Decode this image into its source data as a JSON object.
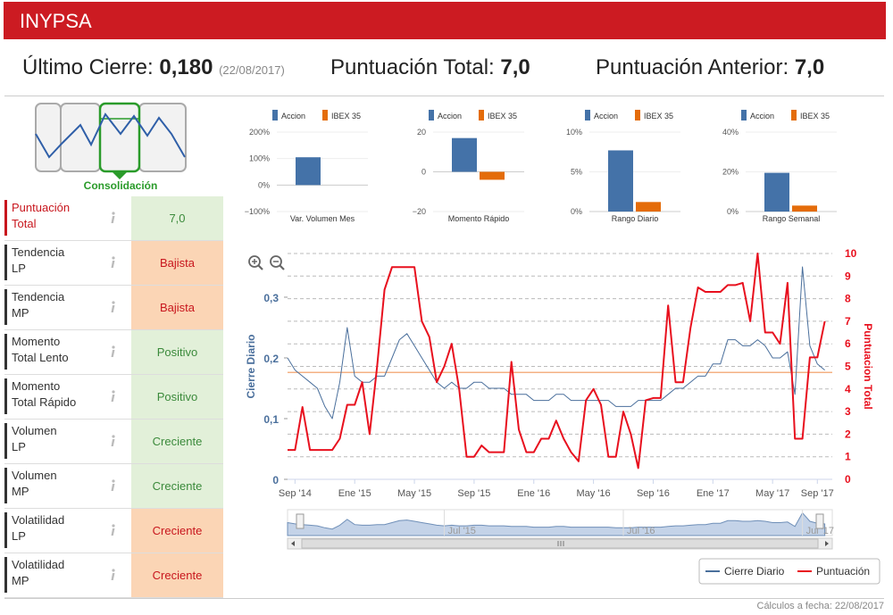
{
  "header": {
    "title": "INYPSA"
  },
  "summary": [
    {
      "label": "Último Cierre:",
      "value": "0,180",
      "date": "(22/08/2017)"
    },
    {
      "label": "Puntuación Total:",
      "value": "7,0"
    },
    {
      "label": "Puntuación Anterior:",
      "value": "7,0"
    }
  ],
  "pattern": {
    "label": "Consolidación"
  },
  "indicators": [
    {
      "label": "Puntuación\nTotal",
      "value": "7,0",
      "label_color": "#c8161d",
      "color": "#e2f0d9",
      "value_color": "#3b8a3b"
    },
    {
      "label": "Tendencia\nLP",
      "value": "Bajista",
      "label_color": "#333333",
      "color": "#fbd5b5",
      "value_color": "#c8161d"
    },
    {
      "label": "Tendencia\nMP",
      "value": "Bajista",
      "label_color": "#333333",
      "color": "#fbd5b5",
      "value_color": "#c8161d"
    },
    {
      "label": "Momento\nTotal Lento",
      "value": "Positivo",
      "label_color": "#333333",
      "color": "#e2f0d9",
      "value_color": "#3b8a3b"
    },
    {
      "label": "Momento\nTotal Rápido",
      "value": "Positivo",
      "label_color": "#333333",
      "color": "#e2f0d9",
      "value_color": "#3b8a3b"
    },
    {
      "label": "Volumen\nLP",
      "value": "Creciente",
      "label_color": "#333333",
      "color": "#e2f0d9",
      "value_color": "#3b8a3b"
    },
    {
      "label": "Volumen\nMP",
      "value": "Creciente",
      "label_color": "#333333",
      "color": "#e2f0d9",
      "value_color": "#3b8a3b"
    },
    {
      "label": "Volatilidad\nLP",
      "value": "Creciente",
      "label_color": "#333333",
      "color": "#fbd5b5",
      "value_color": "#c8161d"
    },
    {
      "label": "Volatilidad\nMP",
      "value": "Creciente",
      "label_color": "#333333",
      "color": "#fbd5b5",
      "value_color": "#c8161d"
    }
  ],
  "chart_data": [
    {
      "type": "line",
      "x": [
        -0.5,
        0,
        0.5,
        1,
        1.5,
        2,
        2.5,
        3,
        3.5,
        4,
        4.5,
        5,
        5.5,
        6,
        6.5,
        7,
        7.5,
        8,
        8.5,
        9,
        9.5,
        10,
        10.5,
        11,
        11.5,
        12,
        12.5,
        13,
        13.5,
        14,
        14.5,
        15,
        15.5,
        16,
        16.5,
        17,
        17.5,
        18,
        18.5,
        19,
        19.5,
        20,
        20.5,
        21,
        21.5,
        22,
        22.5,
        23,
        23.5,
        24,
        24.5,
        25,
        25.5,
        26,
        26.5,
        27,
        27.5,
        28,
        28.5,
        29,
        29.5,
        30,
        30.5,
        31,
        31.5,
        32,
        32.5,
        33,
        33.5,
        34,
        34.5,
        35,
        35.5
      ],
      "xlim": [
        -0.5,
        36
      ],
      "xticks": [
        {
          "value": 0,
          "label": "Sep '14"
        },
        {
          "value": 4,
          "label": "Ene '15"
        },
        {
          "value": 8,
          "label": "May '15"
        },
        {
          "value": 12,
          "label": "Sep '15"
        },
        {
          "value": 16,
          "label": "Ene '16"
        },
        {
          "value": 20,
          "label": "May '16"
        },
        {
          "value": 24,
          "label": "Sep '16"
        },
        {
          "value": 28,
          "label": "Ene '17"
        },
        {
          "value": 32,
          "label": "May '17"
        },
        {
          "value": 35,
          "label": "Sep '17"
        }
      ],
      "ylabel": "Cierre Diario",
      "y2label": "Puntuacion Total",
      "ylim": [
        0,
        0.372
      ],
      "yticks": [
        0,
        {
          "value": 0.1,
          "label": "0,1"
        },
        {
          "value": 0.2,
          "label": "0,2"
        },
        {
          "value": 0.3,
          "label": "0,3"
        }
      ],
      "y2lim": [
        0,
        10
      ],
      "y2ticks": [
        0,
        1,
        2,
        3,
        4,
        5,
        6,
        7,
        8,
        9,
        10
      ],
      "grid": true,
      "series": [
        {
          "name": "Cierre Diario",
          "color": "#4a6f9c",
          "values": [
            0.2,
            0.18,
            0.17,
            0.16,
            0.15,
            0.12,
            0.1,
            0.16,
            0.25,
            0.17,
            0.16,
            0.16,
            0.17,
            0.17,
            0.2,
            0.23,
            0.24,
            0.22,
            0.2,
            0.18,
            0.16,
            0.15,
            0.16,
            0.15,
            0.15,
            0.16,
            0.16,
            0.15,
            0.15,
            0.15,
            0.14,
            0.14,
            0.14,
            0.13,
            0.13,
            0.13,
            0.14,
            0.14,
            0.13,
            0.13,
            0.13,
            0.13,
            0.13,
            0.13,
            0.12,
            0.12,
            0.12,
            0.13,
            0.13,
            0.13,
            0.13,
            0.14,
            0.15,
            0.15,
            0.16,
            0.17,
            0.17,
            0.19,
            0.19,
            0.23,
            0.23,
            0.22,
            0.22,
            0.23,
            0.22,
            0.2,
            0.2,
            0.21,
            0.14,
            0.35,
            0.22,
            0.19,
            0.18
          ]
        },
        {
          "name": "Puntuación",
          "color": "#e8101e",
          "axis": "y2",
          "values": [
            1.3,
            1.3,
            3.2,
            1.3,
            1.3,
            1.3,
            1.3,
            1.8,
            3.3,
            3.3,
            4.3,
            2.0,
            5.0,
            8.4,
            9.4,
            9.4,
            9.4,
            9.4,
            7.0,
            6.3,
            4.3,
            5.0,
            6.0,
            4.0,
            1.0,
            1.0,
            1.5,
            1.2,
            1.2,
            1.2,
            5.2,
            2.2,
            1.2,
            1.2,
            1.8,
            1.8,
            2.6,
            1.8,
            1.2,
            0.8,
            3.5,
            4.0,
            3.3,
            1.0,
            1.0,
            3.0,
            2.0,
            0.5,
            3.5,
            3.6,
            3.6,
            7.7,
            4.3,
            4.3,
            6.7,
            8.5,
            8.3,
            8.3,
            8.3,
            8.6,
            8.6,
            8.7,
            7.0,
            10.0,
            6.5,
            6.5,
            6.0,
            8.7,
            1.8,
            1.8,
            5.4,
            5.4,
            7.0
          ]
        }
      ],
      "reference_line": {
        "value": 0.176,
        "color": "#f4b183"
      },
      "navigator": {
        "xticks": [
          {
            "value": 10,
            "label": "Jul '15"
          },
          {
            "value": 22,
            "label": "Jul '16"
          },
          {
            "value": 34,
            "label": "Jul '17"
          }
        ]
      }
    },
    {
      "type": "bar",
      "categories": [
        "Var. Volumen Mes"
      ],
      "ylim": [
        -100,
        200
      ],
      "yticks": [
        {
          "value": -100,
          "label": "−100%"
        },
        {
          "value": 0,
          "label": "0%"
        },
        {
          "value": 100,
          "label": "100%"
        },
        {
          "value": 200,
          "label": "200%"
        }
      ],
      "series": [
        {
          "name": "Accion",
          "color": "#4472a8",
          "values": [
            105
          ]
        },
        {
          "name": "IBEX 35",
          "color": "#e46c0a",
          "values": [
            null
          ]
        }
      ]
    },
    {
      "type": "bar",
      "categories": [
        "Momento Rápido"
      ],
      "ylim": [
        -20,
        20
      ],
      "yticks": [
        {
          "value": -20,
          "label": "−20"
        },
        0,
        20
      ],
      "series": [
        {
          "name": "Accion",
          "color": "#4472a8",
          "values": [
            17
          ]
        },
        {
          "name": "IBEX 35",
          "color": "#e46c0a",
          "values": [
            -4
          ]
        }
      ]
    },
    {
      "type": "bar",
      "categories": [
        "Rango Diario"
      ],
      "ylim": [
        0,
        10
      ],
      "yticks": [
        {
          "value": 0,
          "label": "0%"
        },
        {
          "value": 5,
          "label": "5%"
        },
        {
          "value": 10,
          "label": "10%"
        }
      ],
      "series": [
        {
          "name": "Accion",
          "color": "#4472a8",
          "values": [
            7.7
          ]
        },
        {
          "name": "IBEX 35",
          "color": "#e46c0a",
          "values": [
            1.2
          ]
        }
      ]
    },
    {
      "type": "bar",
      "categories": [
        "Rango Semanal"
      ],
      "ylim": [
        0,
        40
      ],
      "yticks": [
        {
          "value": 0,
          "label": "0%"
        },
        {
          "value": 20,
          "label": "20%"
        },
        {
          "value": 40,
          "label": "40%"
        }
      ],
      "series": [
        {
          "name": "Accion",
          "color": "#4472a8",
          "values": [
            19.5
          ]
        },
        {
          "name": "IBEX 35",
          "color": "#e46c0a",
          "values": [
            3
          ]
        }
      ]
    }
  ],
  "footer": "Cálculos a fecha: 22/08/2017"
}
